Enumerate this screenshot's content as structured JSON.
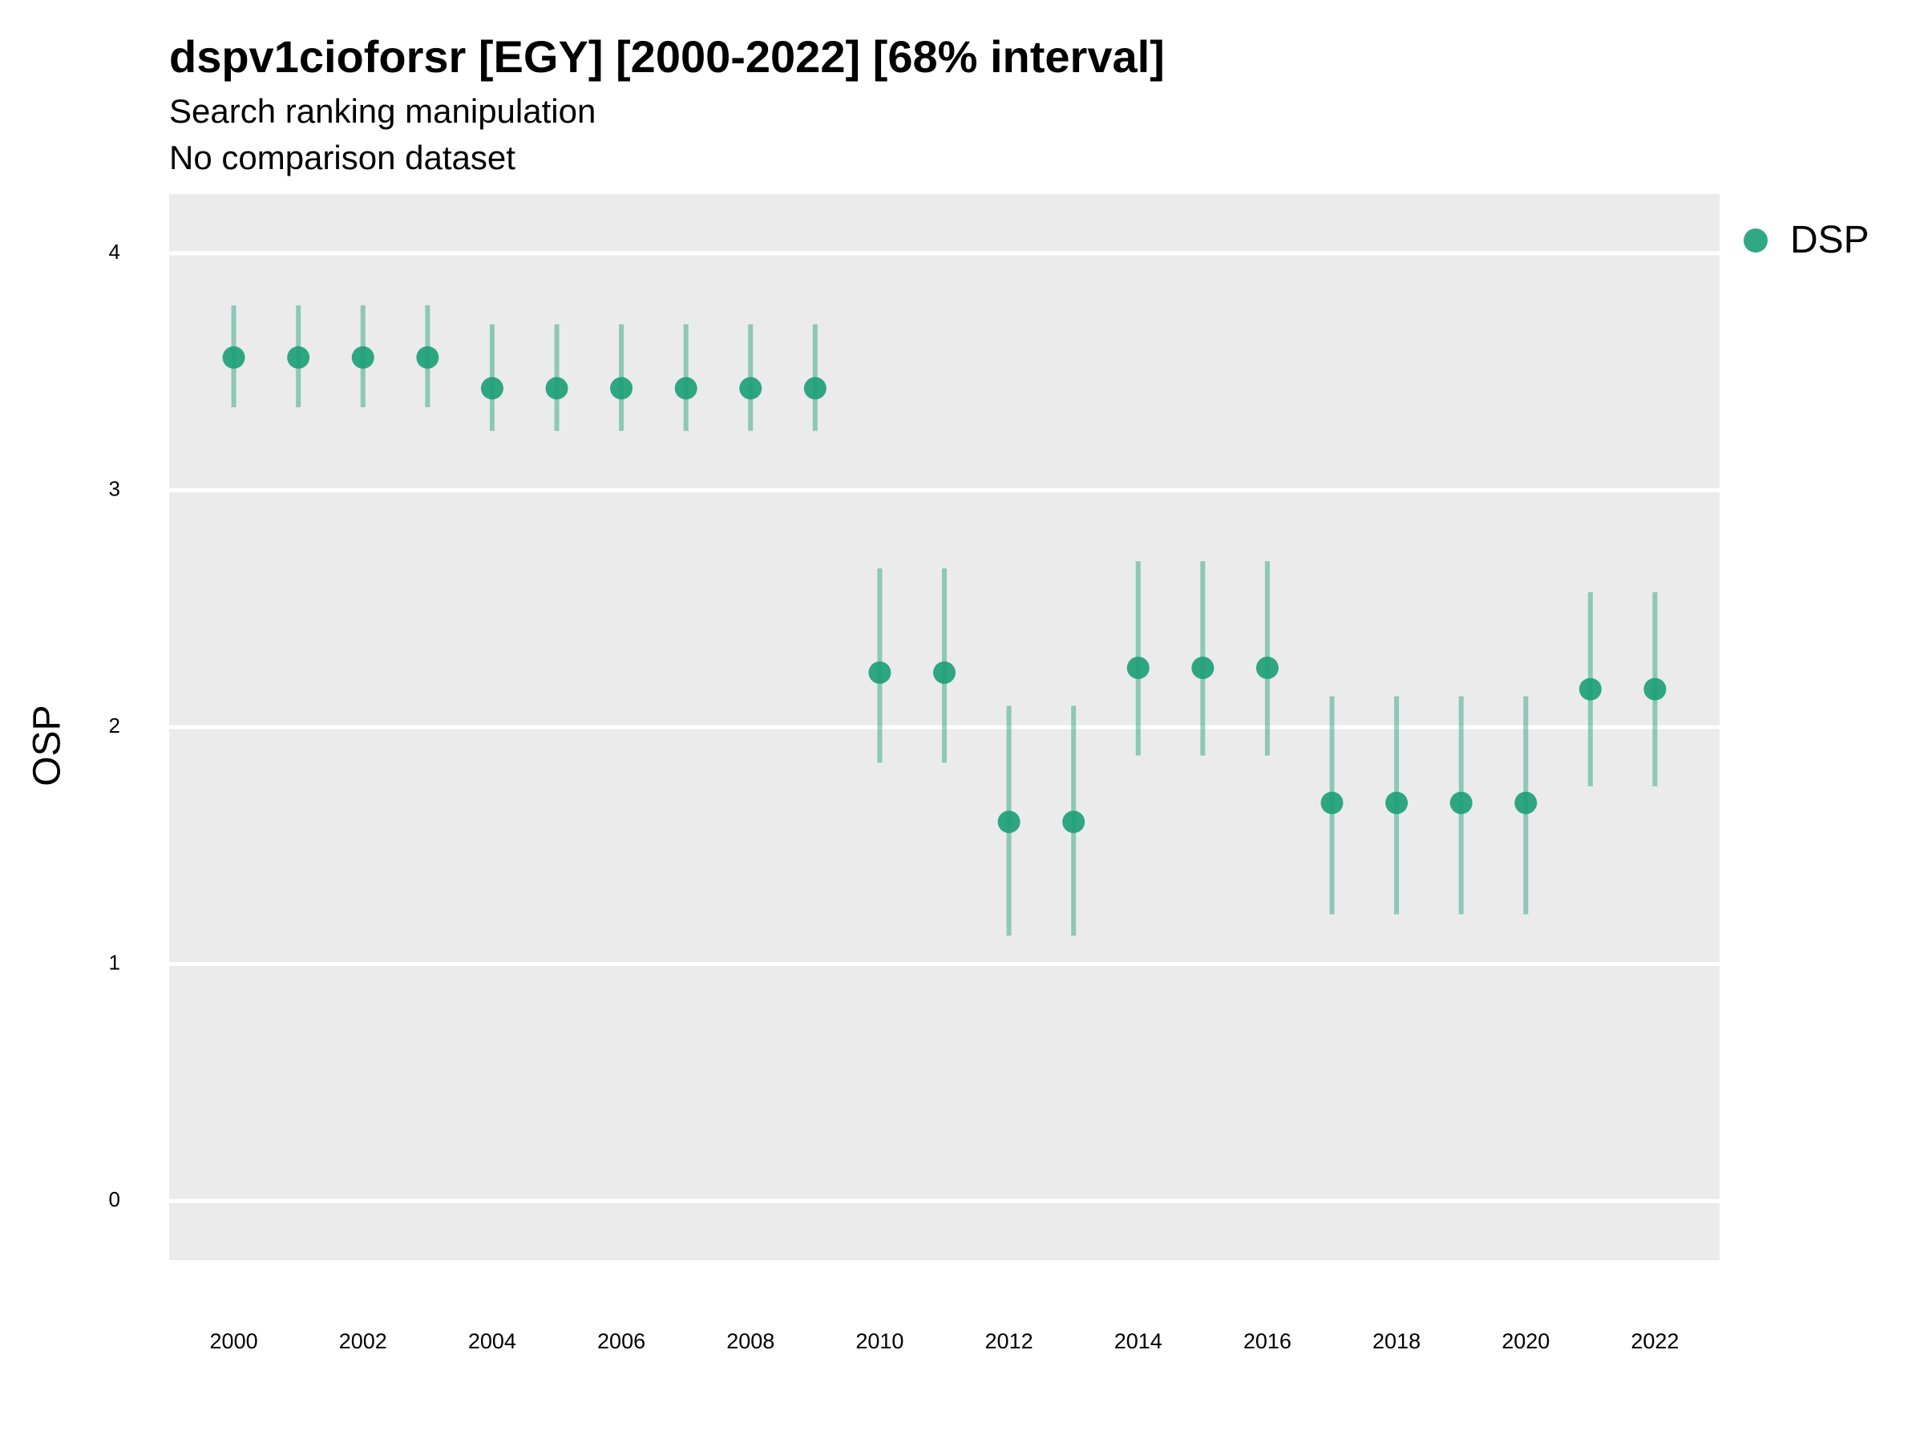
{
  "title": "dspv1cioforsr [EGY] [2000-2022] [68% interval]",
  "subtitle_lines": [
    "Search ranking manipulation",
    "No comparison dataset"
  ],
  "colors": {
    "series": "#1b9e77",
    "panel": "#ebebeb",
    "grid": "#ffffff"
  },
  "legend": {
    "placement": "right-top",
    "label": "DSP"
  },
  "chart_data": {
    "type": "scatter",
    "subtype": "point-with-interval",
    "title": "dspv1cioforsr [EGY] [2000-2022] [68% interval]",
    "xlabel": "",
    "ylabel": "OSP",
    "xlim": [
      1999,
      2023
    ],
    "ylim": [
      -0.25,
      4.25
    ],
    "x_ticks": [
      2000,
      2002,
      2004,
      2006,
      2008,
      2010,
      2012,
      2014,
      2016,
      2018,
      2020,
      2022
    ],
    "y_ticks": [
      0,
      1,
      2,
      3,
      4
    ],
    "grid": true,
    "series": [
      {
        "name": "DSP",
        "x": [
          2000,
          2001,
          2002,
          2003,
          2004,
          2005,
          2006,
          2007,
          2008,
          2009,
          2010,
          2011,
          2012,
          2013,
          2014,
          2015,
          2016,
          2017,
          2018,
          2019,
          2020,
          2021,
          2022
        ],
        "y": [
          3.56,
          3.56,
          3.56,
          3.56,
          3.43,
          3.43,
          3.43,
          3.43,
          3.43,
          3.43,
          2.23,
          2.23,
          1.6,
          1.6,
          2.25,
          2.25,
          2.25,
          1.68,
          1.68,
          1.68,
          1.68,
          2.16,
          2.16
        ],
        "lower": [
          3.35,
          3.35,
          3.35,
          3.35,
          3.25,
          3.25,
          3.25,
          3.25,
          3.25,
          3.25,
          1.85,
          1.85,
          1.12,
          1.12,
          1.88,
          1.88,
          1.88,
          1.21,
          1.21,
          1.21,
          1.21,
          1.75,
          1.75
        ],
        "upper": [
          3.78,
          3.78,
          3.78,
          3.78,
          3.7,
          3.7,
          3.7,
          3.7,
          3.7,
          3.7,
          2.67,
          2.67,
          2.09,
          2.09,
          2.7,
          2.7,
          2.7,
          2.13,
          2.13,
          2.13,
          2.13,
          2.57,
          2.57
        ]
      }
    ]
  }
}
